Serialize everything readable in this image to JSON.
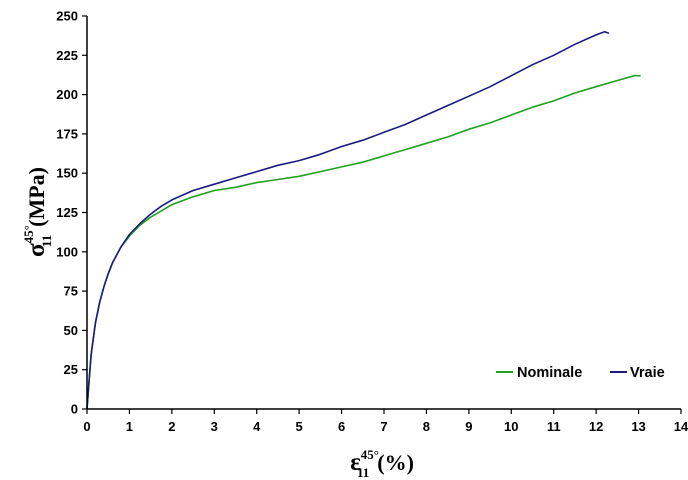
{
  "chart_data": {
    "type": "line",
    "xlabel": {
      "symbol": "ε",
      "sub": "11",
      "sup": "45°",
      "unit": "(%)"
    },
    "ylabel": {
      "symbol": "σ",
      "sub": "11",
      "sup": "45°",
      "unit": "(MPa)"
    },
    "xlim": [
      0,
      14
    ],
    "ylim": [
      0,
      250
    ],
    "x_ticks": [
      "0",
      "1",
      "2",
      "3",
      "4",
      "5",
      "6",
      "7",
      "8",
      "9",
      "10",
      "11",
      "12",
      "13",
      "14"
    ],
    "y_ticks": [
      "0",
      "25",
      "50",
      "75",
      "100",
      "125",
      "150",
      "175",
      "200",
      "225",
      "250"
    ],
    "grid": false,
    "legend_position": "bottom-right",
    "series": [
      {
        "name": "Nominale",
        "color": "#22a022",
        "x": [
          0,
          0.05,
          0.1,
          0.2,
          0.3,
          0.4,
          0.5,
          0.6,
          0.8,
          1.0,
          1.25,
          1.5,
          1.75,
          2.0,
          2.5,
          3.0,
          3.5,
          4.0,
          4.5,
          5.0,
          5.5,
          6.0,
          6.5,
          7.0,
          7.5,
          8.0,
          8.5,
          9.0,
          9.5,
          10.0,
          10.5,
          11.0,
          11.5,
          12.0,
          12.5,
          12.9,
          13.05
        ],
        "y": [
          0,
          18,
          35,
          55,
          68,
          78,
          86,
          93,
          103,
          110,
          117,
          122,
          126,
          130,
          135,
          139,
          141,
          144,
          146,
          148,
          151,
          154,
          157,
          161,
          165,
          169,
          173,
          178,
          182,
          187,
          192,
          196,
          201,
          205,
          209,
          212,
          212
        ]
      },
      {
        "name": "Vraie",
        "color": "#1a1a80",
        "x": [
          0,
          0.05,
          0.1,
          0.2,
          0.3,
          0.4,
          0.5,
          0.6,
          0.8,
          1.0,
          1.25,
          1.5,
          1.75,
          2.0,
          2.5,
          3.0,
          3.5,
          4.0,
          4.5,
          5.0,
          5.5,
          6.0,
          6.5,
          7.0,
          7.5,
          8.0,
          8.5,
          9.0,
          9.5,
          10.0,
          10.5,
          11.0,
          11.5,
          12.0,
          12.2,
          12.3
        ],
        "y": [
          0,
          18,
          35,
          55,
          68,
          78,
          86,
          93,
          103,
          111,
          118,
          124,
          129,
          133,
          139,
          143,
          147,
          151,
          155,
          158,
          162,
          167,
          171,
          176,
          181,
          187,
          193,
          199,
          205,
          212,
          219,
          225,
          232,
          238,
          240,
          239
        ]
      }
    ]
  }
}
